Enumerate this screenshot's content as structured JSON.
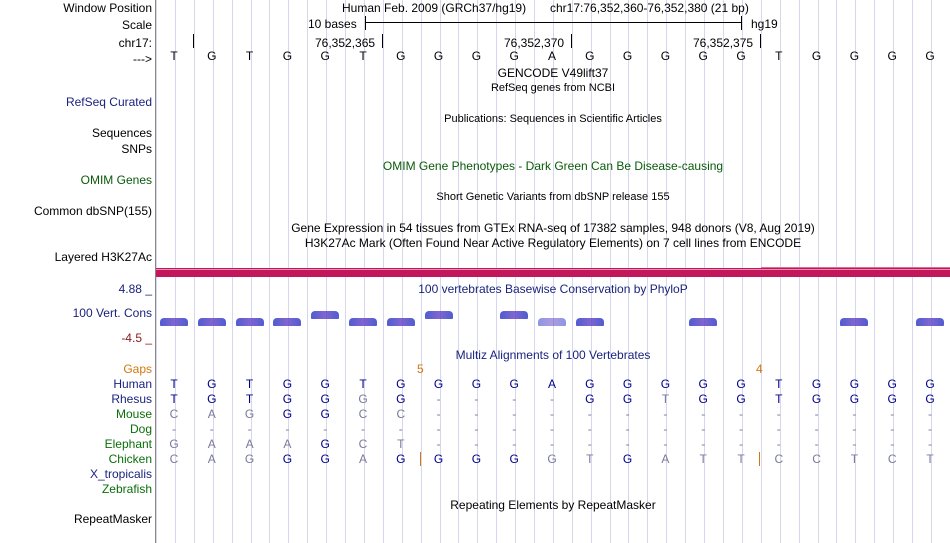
{
  "labels": {
    "window_position": "Window Position",
    "scale": "Scale",
    "chrom": "chr17:",
    "arrow": "--->",
    "refseq": "RefSeq Curated",
    "sequences": "Sequences",
    "snps": "SNPs",
    "omim": "OMIM Genes",
    "dbsnp": "Common dbSNP(155)",
    "layered": "Layered H3K27Ac",
    "cons_max": "4.88 _",
    "cons_name": "100 Vert. Cons",
    "cons_min": "-4.5 _",
    "gaps": "Gaps",
    "species": [
      "Human",
      "Rhesus",
      "Mouse",
      "Dog",
      "Elephant",
      "Chicken",
      "X_tropicalis",
      "Zebrafish"
    ],
    "repeatmasker": "RepeatMasker"
  },
  "header": {
    "assembly": "Human Feb. 2009 (GRCh37/hg19)",
    "position": "chr17:76,352,360-76,352,380 (21 bp)",
    "scale_label": "10 bases",
    "scale_db": "hg19",
    "ruler_coords": [
      "76,352,365",
      "76,352,370",
      "76,352,375"
    ]
  },
  "sequence": [
    "T",
    "G",
    "T",
    "G",
    "G",
    "T",
    "G",
    "G",
    "G",
    "G",
    "A",
    "G",
    "G",
    "G",
    "G",
    "G",
    "T",
    "G",
    "G",
    "G",
    "G"
  ],
  "tracks": {
    "gencode_title": "GENCODE V49lift37",
    "refseq_title": "RefSeq genes from NCBI",
    "publications_title": "Publications: Sequences in Scientific Articles",
    "omim_title": "OMIM Gene Phenotypes - Dark Green Can Be Disease-causing",
    "dbsnp_title": "Short Genetic Variants from dbSNP release 155",
    "gtex_title": "Gene Expression in 54 tissues from GTEx RNA-seq of 17382 samples, 948 donors (V8, Aug 2019)",
    "h3k27ac_title": "H3K27Ac Mark (Often Found Near Active Regulatory Elements) on 7 cell lines from ENCODE",
    "phylop_title": "100 vertebrates Basewise Conservation by PhyloP",
    "multiz_title": "Multiz Alignments of 100 Vertebrates",
    "repeat_title": "Repeating Elements by RepeatMasker"
  },
  "gaps": [
    "5",
    "4"
  ],
  "alignments": {
    "Human": [
      "T",
      "G",
      "T",
      "G",
      "G",
      "T",
      "G",
      "G",
      "G",
      "G",
      "A",
      "G",
      "G",
      "G",
      "G",
      "G",
      "T",
      "G",
      "G",
      "G",
      "G"
    ],
    "Rhesus": [
      "T",
      "G",
      "T",
      "G",
      "G",
      "G",
      "G",
      "-",
      "-",
      "-",
      "-",
      "G",
      "G",
      "T",
      "G",
      "G",
      "T",
      "G",
      "G",
      "G",
      "G"
    ],
    "Mouse": [
      "C",
      "A",
      "G",
      "G",
      "G",
      "C",
      "C",
      "-",
      "-",
      "-",
      "-",
      "-",
      "-",
      "-",
      "-",
      "-",
      "-",
      "-",
      "-",
      "-",
      "-"
    ],
    "Dog": [
      "-",
      "-",
      "-",
      "-",
      "-",
      "-",
      "-",
      "-",
      "-",
      "-",
      "-",
      "-",
      "-",
      "-",
      "-",
      "-",
      "-",
      "-",
      "-",
      "-",
      "-"
    ],
    "Elephant": [
      "G",
      "A",
      "A",
      "A",
      "G",
      "C",
      "T",
      "-",
      "-",
      "-",
      "-",
      "-",
      "-",
      "-",
      "-",
      "-",
      "-",
      "-",
      "-",
      "-",
      "-"
    ],
    "Chicken": [
      "C",
      "A",
      "G",
      "G",
      "G",
      "A",
      "G",
      "G",
      "G",
      "G",
      "G",
      "T",
      "G",
      "A",
      "T",
      "T",
      "C",
      "C",
      "T",
      "C",
      "T"
    ]
  },
  "colors": {
    "track_label": "#1a237e",
    "omim_green": "#0a5a0a",
    "species_green": "#0a6e0a",
    "gap_orange": "#d4780a",
    "cons_red": "#8b1a1a",
    "h3k27ac_bar": "#c2185b",
    "conserved": "#00008b",
    "unconserved": "#7a7a9a"
  }
}
